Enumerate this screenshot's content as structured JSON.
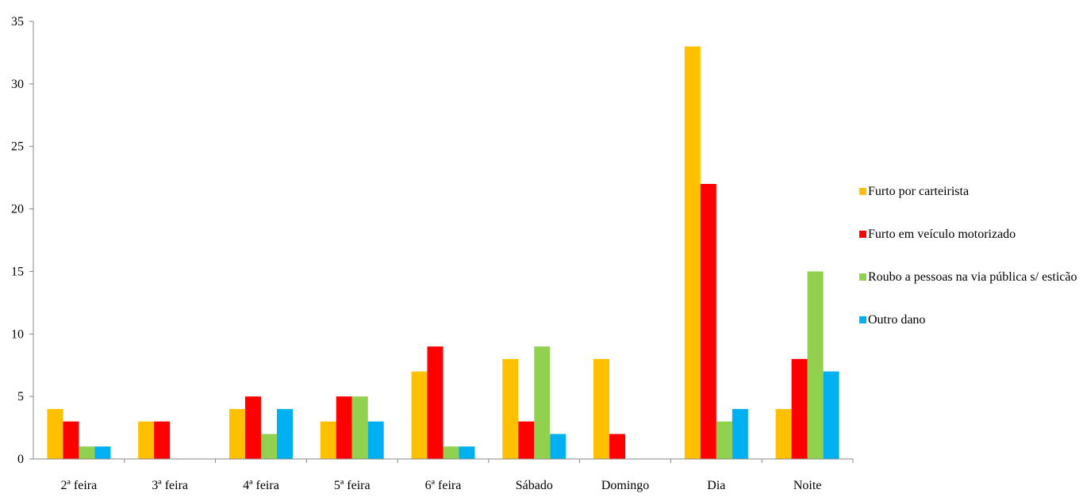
{
  "chart_data": {
    "type": "bar",
    "title": "",
    "xlabel": "",
    "ylabel": "",
    "ylim": [
      0,
      35
    ],
    "yticks": [
      0,
      5,
      10,
      15,
      20,
      25,
      30,
      35
    ],
    "grid": false,
    "legend_position": "right",
    "categories": [
      "2ª feira",
      "3ª feira",
      "4ª feira",
      "5ª feira",
      "6ª feira",
      "Sábado",
      "Domingo",
      "Dia",
      "Noite"
    ],
    "series": [
      {
        "name": "Furto por carteirista",
        "color": "#FFC000",
        "values": [
          4,
          3,
          4,
          3,
          7,
          8,
          8,
          33,
          4
        ]
      },
      {
        "name": "Furto em veículo motorizado",
        "color": "#FF0000",
        "values": [
          3,
          3,
          5,
          5,
          9,
          3,
          2,
          22,
          8
        ]
      },
      {
        "name": "Roubo a pessoas na via pública s/ esticão",
        "color": "#92D050",
        "values": [
          1,
          0,
          2,
          5,
          1,
          9,
          0,
          3,
          15
        ]
      },
      {
        "name": "Outro dano",
        "color": "#00B0F0",
        "values": [
          1,
          0,
          4,
          3,
          1,
          2,
          0,
          4,
          7
        ]
      }
    ]
  }
}
